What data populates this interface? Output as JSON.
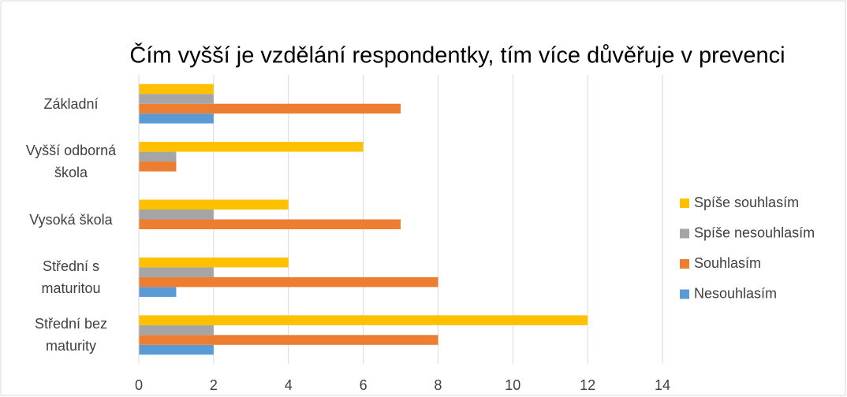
{
  "chart_data": {
    "type": "bar",
    "orientation": "horizontal",
    "title": "Čím vyšší je vzdělání respondentky, tím více důvěřuje v prevenci",
    "categories": [
      "Základní",
      "Vyšší odborná škola",
      "Vysoká škola",
      "Střední s maturitou",
      "Střední bez maturity"
    ],
    "series": [
      {
        "name": "Nesouhlasím",
        "color": "#5b9bd5",
        "values": [
          2,
          0,
          0,
          1,
          2
        ]
      },
      {
        "name": "Souhlasím",
        "color": "#ed7d31",
        "values": [
          7,
          1,
          7,
          8,
          8
        ]
      },
      {
        "name": "Spíše nesouhlasím",
        "color": "#a5a5a5",
        "values": [
          2,
          1,
          2,
          2,
          2
        ]
      },
      {
        "name": "Spíše souhlasím",
        "color": "#ffc000",
        "values": [
          2,
          6,
          4,
          4,
          12
        ]
      }
    ],
    "xlim": [
      0,
      14
    ],
    "xticks": [
      0,
      2,
      4,
      6,
      8,
      10,
      12,
      14
    ],
    "grid": true,
    "legend": "right"
  }
}
